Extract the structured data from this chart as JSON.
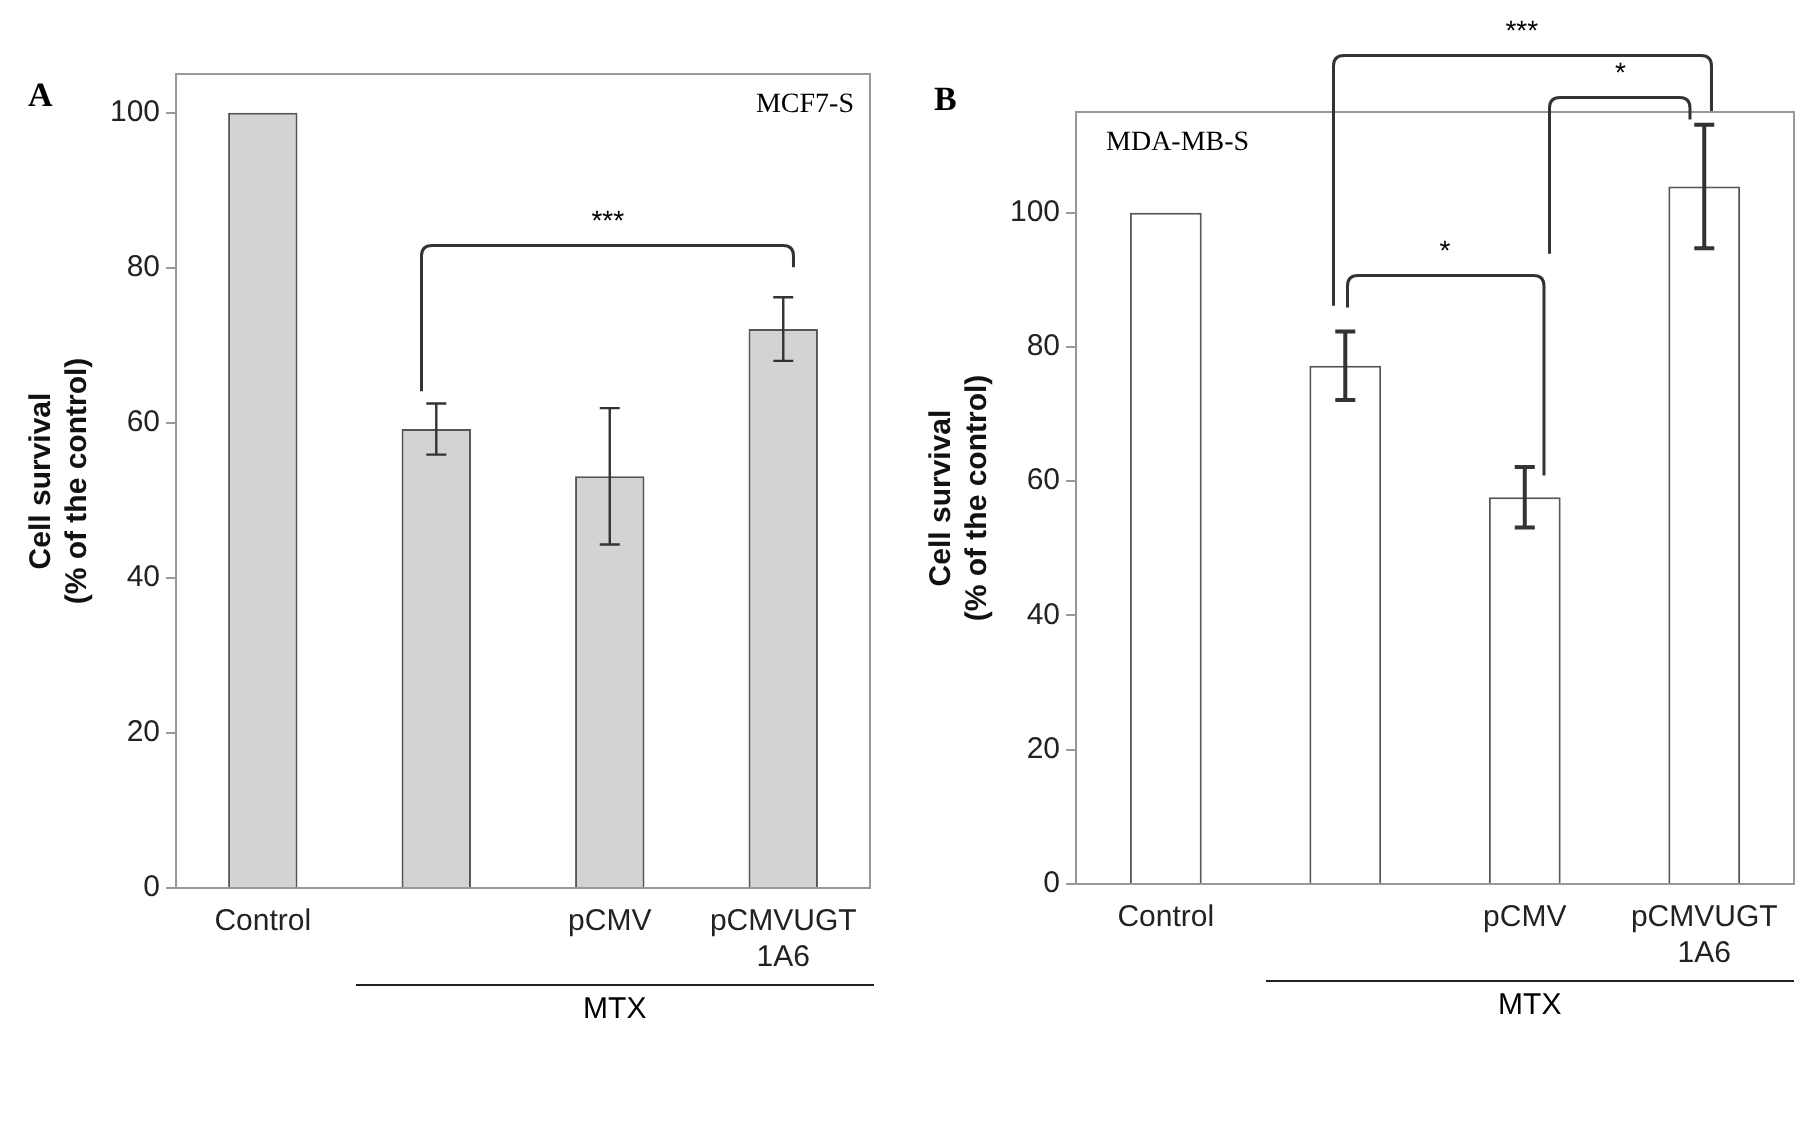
{
  "chart_data": [
    {
      "type": "bar",
      "title": "A",
      "ylabel": "Cell survival\n(% of the control)",
      "categories": [
        "Control",
        null,
        "pCMV",
        "pCMVUGT 1A6"
      ],
      "values": [
        100,
        59.2,
        53.1,
        72.1
      ],
      "errors": [
        null,
        3.3,
        8.8,
        4.1
      ],
      "color": "#d3d3d3",
      "ylim": [
        0,
        105
      ],
      "yticks": [
        0,
        20,
        40,
        60,
        80,
        100
      ],
      "grid": false,
      "legend": false,
      "annotations": [
        "MCF7-S",
        "***",
        "MTX"
      ]
    },
    {
      "type": "bar",
      "title": "B",
      "ylabel": "Cell survival\n(% of the control)",
      "categories": [
        "Control",
        null,
        "pCMV",
        "pCMVUGT 1A6"
      ],
      "values": [
        100,
        77.2,
        57.6,
        103.9
      ],
      "errors": [
        null,
        5.1,
        4.5,
        9.2
      ],
      "color": "#ffffff",
      "ylim": [
        0,
        115
      ],
      "yticks": [
        0,
        20,
        40,
        60,
        80,
        100
      ],
      "grid": false,
      "legend": false,
      "annotations": [
        "MDA-MB-S",
        "*",
        "***",
        "*",
        "MTX"
      ]
    }
  ]
}
